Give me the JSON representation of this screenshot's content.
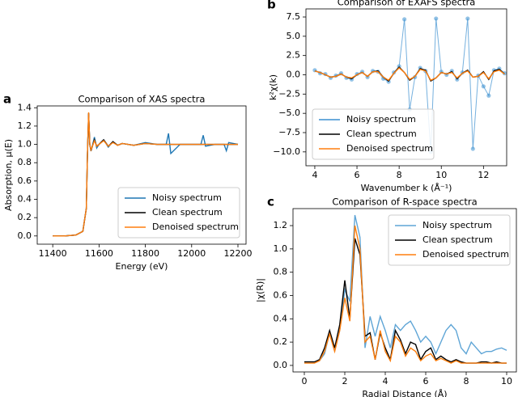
{
  "chart_data": [
    {
      "type": "line",
      "label": "a",
      "title": "Comparison of XAS spectra",
      "x_label": "Energy (eV)",
      "y_label": "Absorption, μ(E)",
      "x": [
        11400,
        11450,
        11500,
        11530,
        11545,
        11550,
        11555,
        11560,
        11565,
        11570,
        11580,
        11590,
        11600,
        11620,
        11640,
        11660,
        11680,
        11700,
        11750,
        11800,
        11850,
        11890,
        11900,
        11910,
        11950,
        12000,
        12040,
        12050,
        12060,
        12100,
        12140,
        12150,
        12160,
        12200
      ],
      "series": [
        {
          "name": "Noisy spectrum",
          "color": "#1f77b4",
          "values": [
            0.0,
            0.0,
            0.01,
            0.05,
            0.3,
            0.9,
            1.34,
            1.0,
            0.93,
            0.97,
            1.08,
            0.96,
            1.0,
            1.05,
            0.97,
            1.03,
            0.99,
            1.01,
            0.99,
            1.02,
            1.0,
            1.0,
            1.12,
            0.9,
            1.0,
            1.0,
            1.0,
            1.1,
            0.98,
            1.0,
            1.0,
            0.93,
            1.02,
            1.0
          ]
        },
        {
          "name": "Clean spectrum",
          "color": "#000000",
          "values": [
            0.0,
            0.0,
            0.01,
            0.05,
            0.3,
            0.9,
            1.34,
            1.0,
            0.93,
            0.97,
            1.05,
            0.98,
            1.0,
            1.05,
            0.98,
            1.03,
            0.99,
            1.01,
            0.99,
            1.01,
            1.0,
            1.0,
            1.0,
            1.0,
            1.0,
            1.0,
            1.0,
            1.0,
            1.0,
            1.0,
            1.0,
            1.0,
            1.0,
            1.0
          ]
        },
        {
          "name": "Denoised spectrum",
          "color": "#ff7f0e",
          "values": [
            0.0,
            0.0,
            0.01,
            0.05,
            0.3,
            0.9,
            1.35,
            1.0,
            0.94,
            0.97,
            1.04,
            0.98,
            1.0,
            1.04,
            0.98,
            1.02,
            0.99,
            1.01,
            0.99,
            1.01,
            1.0,
            1.0,
            1.0,
            1.0,
            1.0,
            1.0,
            1.0,
            1.0,
            1.0,
            1.0,
            1.0,
            1.0,
            1.0,
            1.0
          ]
        }
      ],
      "xlim": [
        11333,
        12235
      ],
      "ylim": [
        -0.09,
        1.42
      ],
      "xticks": [
        11400,
        11600,
        11800,
        12000,
        12200
      ],
      "yticks": [
        {
          "value": 0,
          "label": "0.0"
        },
        0.2,
        0.4,
        0.6,
        0.8,
        {
          "value": 1,
          "label": "1.0"
        },
        1.2,
        1.4
      ],
      "legend": "lower right"
    },
    {
      "type": "line",
      "label": "b",
      "title": "Comparison of EXAFS spectra",
      "x_label": "Wavenumber k (Å⁻¹)",
      "y_label": "k²χ(k)",
      "x": [
        4,
        4.25,
        4.5,
        4.75,
        5,
        5.25,
        5.5,
        5.75,
        6,
        6.25,
        6.5,
        6.75,
        7,
        7.25,
        7.5,
        7.75,
        8,
        8.25,
        8.5,
        8.75,
        9,
        9.25,
        9.5,
        9.75,
        10,
        10.25,
        10.5,
        10.75,
        11,
        11.25,
        11.5,
        11.75,
        12,
        12.25,
        12.5,
        12.75,
        13
      ],
      "series": [
        {
          "name": "Noisy spectrum",
          "color": "#3a8fd0",
          "markers": true,
          "values": [
            0.6,
            0.2,
            0.1,
            -0.4,
            -0.1,
            0.2,
            -0.4,
            -0.6,
            0.1,
            0.4,
            -0.3,
            0.5,
            0.4,
            -0.5,
            -0.9,
            0.3,
            1.1,
            7.2,
            -4.5,
            -0.3,
            0.9,
            0.5,
            -10.0,
            7.3,
            0.4,
            0.0,
            0.5,
            -0.6,
            0.3,
            7.3,
            -9.6,
            -0.1,
            -1.5,
            -2.7,
            0.6,
            0.8,
            0.2
          ]
        },
        {
          "name": "Clean spectrum",
          "color": "#000000",
          "values": [
            0.5,
            0.3,
            0.0,
            -0.3,
            -0.2,
            0.1,
            -0.3,
            -0.5,
            0.0,
            0.3,
            -0.2,
            0.4,
            0.5,
            -0.3,
            -0.8,
            0.2,
            1.0,
            0.3,
            -0.7,
            -0.2,
            0.8,
            0.6,
            -0.8,
            -0.4,
            0.3,
            0.1,
            0.4,
            -0.5,
            0.2,
            0.6,
            -0.3,
            -0.2,
            0.4,
            -0.6,
            0.5,
            0.7,
            0.1
          ]
        },
        {
          "name": "Denoised spectrum",
          "color": "#ff7f0e",
          "values": [
            0.5,
            0.3,
            0.0,
            -0.3,
            -0.2,
            0.1,
            -0.3,
            -0.4,
            0.0,
            0.3,
            -0.2,
            0.4,
            0.4,
            -0.3,
            -0.7,
            0.2,
            0.9,
            0.3,
            -0.6,
            -0.2,
            0.7,
            0.5,
            -0.7,
            -0.4,
            0.3,
            0.1,
            0.3,
            -0.4,
            0.2,
            0.5,
            -0.3,
            -0.2,
            0.3,
            -0.5,
            0.4,
            0.6,
            0.1
          ]
        }
      ],
      "xlim": [
        3.58,
        13.1
      ],
      "ylim": [
        -11.8,
        8.55
      ],
      "xticks": [
        4,
        6,
        8,
        10,
        12
      ],
      "yticks": [
        7.5,
        {
          "value": 5,
          "label": "5.0"
        },
        2.5,
        {
          "value": 0,
          "label": "0.0"
        },
        {
          "value": -2.5,
          "label": "−2.5"
        },
        {
          "value": -5,
          "label": "−5.0"
        },
        {
          "value": -7.5,
          "label": "−7.5"
        },
        {
          "value": -10,
          "label": "−10.0"
        }
      ],
      "legend": "lower left"
    },
    {
      "type": "line",
      "label": "c",
      "title": "Comparison of R-space spectra",
      "x_label": "Radial Distance (Å)",
      "y_label": "|χ(R)|",
      "x": [
        0,
        0.25,
        0.5,
        0.75,
        1,
        1.25,
        1.5,
        1.75,
        2,
        2.25,
        2.5,
        2.75,
        3,
        3.25,
        3.5,
        3.75,
        4,
        4.25,
        4.5,
        4.75,
        5,
        5.25,
        5.5,
        5.75,
        6,
        6.25,
        6.5,
        6.75,
        7,
        7.25,
        7.5,
        7.75,
        8,
        8.25,
        8.5,
        8.75,
        9,
        9.25,
        9.5,
        9.75,
        10
      ],
      "series": [
        {
          "name": "Noisy spectrum",
          "color": "#5fa5d6",
          "values": [
            0.03,
            0.03,
            0.03,
            0.04,
            0.1,
            0.28,
            0.12,
            0.3,
            0.65,
            0.55,
            1.29,
            1.1,
            0.15,
            0.42,
            0.25,
            0.42,
            0.3,
            0.15,
            0.35,
            0.3,
            0.35,
            0.38,
            0.3,
            0.2,
            0.25,
            0.2,
            0.1,
            0.2,
            0.3,
            0.35,
            0.3,
            0.15,
            0.1,
            0.2,
            0.15,
            0.1,
            0.12,
            0.12,
            0.14,
            0.15,
            0.13
          ]
        },
        {
          "name": "Clean spectrum",
          "color": "#000000",
          "values": [
            0.03,
            0.03,
            0.03,
            0.05,
            0.15,
            0.3,
            0.15,
            0.35,
            0.73,
            0.4,
            1.09,
            0.95,
            0.25,
            0.28,
            0.05,
            0.28,
            0.15,
            0.05,
            0.3,
            0.22,
            0.1,
            0.2,
            0.18,
            0.05,
            0.12,
            0.15,
            0.05,
            0.08,
            0.05,
            0.03,
            0.05,
            0.03,
            0.02,
            0.02,
            0.02,
            0.03,
            0.03,
            0.02,
            0.03,
            0.02,
            0.02
          ]
        },
        {
          "name": "Denoised spectrum",
          "color": "#ff7f0e",
          "values": [
            0.02,
            0.02,
            0.02,
            0.04,
            0.12,
            0.27,
            0.12,
            0.3,
            0.58,
            0.38,
            1.2,
            1.0,
            0.2,
            0.25,
            0.05,
            0.3,
            0.12,
            0.04,
            0.25,
            0.2,
            0.08,
            0.15,
            0.12,
            0.04,
            0.08,
            0.1,
            0.04,
            0.06,
            0.04,
            0.02,
            0.04,
            0.02,
            0.02,
            0.02,
            0.02,
            0.02,
            0.02,
            0.02,
            0.02,
            0.02,
            0.02
          ]
        }
      ],
      "xlim": [
        -0.56,
        10.48
      ],
      "ylim": [
        -0.056,
        1.346
      ],
      "xticks": [
        0,
        2,
        4,
        6,
        8,
        10
      ],
      "yticks": [
        {
          "value": 0,
          "label": "0.0"
        },
        0.2,
        0.4,
        0.6,
        0.8,
        {
          "value": 1,
          "label": "1.0"
        },
        1.2
      ],
      "legend": "upper right"
    }
  ]
}
